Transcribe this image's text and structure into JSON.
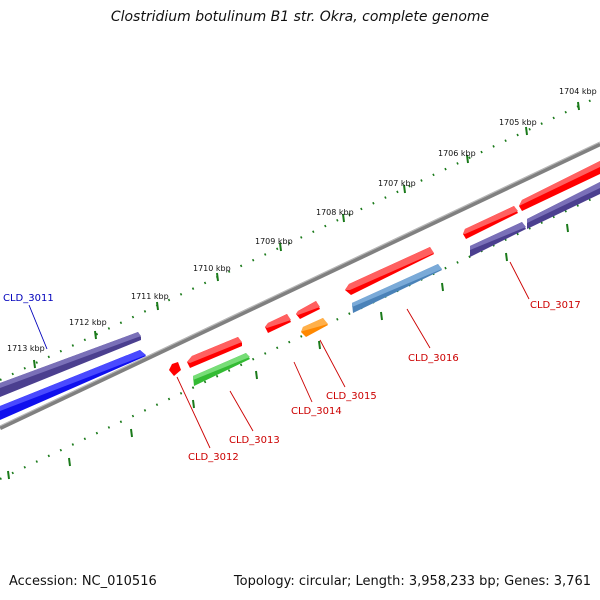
{
  "title": "Clostridium botulinum B1 str. Okra, complete genome",
  "footer": {
    "accession": "Accession: NC_010516",
    "summary": "Topology: circular; Length: 3,958,233 bp; Genes: 3,761"
  },
  "colors": {
    "backbone": "#888888",
    "tick": "#1a7a1a",
    "gene_red": "#ff0000",
    "gene_indigo": "#4b3f8f",
    "gene_blue": "#1010ee",
    "gene_green": "#33bb33",
    "gene_orange": "#ff8800",
    "gene_steel": "#4a82b8",
    "label_red": "#cc0000",
    "label_blue": "#0000bb"
  },
  "kbp_labels": [
    "1704 kbp",
    "1705 kbp",
    "1706 kbp",
    "1707 kbp",
    "1708 kbp",
    "1709 kbp",
    "1710 kbp",
    "1711 kbp",
    "1712 kbp",
    "1713 kbp"
  ],
  "gene_labels": [
    {
      "id": "cld3011",
      "text": "CLD_3011",
      "color": "blue"
    },
    {
      "id": "cld3012",
      "text": "CLD_3012",
      "color": "red"
    },
    {
      "id": "cld3013",
      "text": "CLD_3013",
      "color": "red"
    },
    {
      "id": "cld3014",
      "text": "CLD_3014",
      "color": "red"
    },
    {
      "id": "cld3015",
      "text": "CLD_3015",
      "color": "red"
    },
    {
      "id": "cld3016",
      "text": "CLD_3016",
      "color": "red"
    },
    {
      "id": "cld3017",
      "text": "CLD_3017",
      "color": "red"
    }
  ]
}
